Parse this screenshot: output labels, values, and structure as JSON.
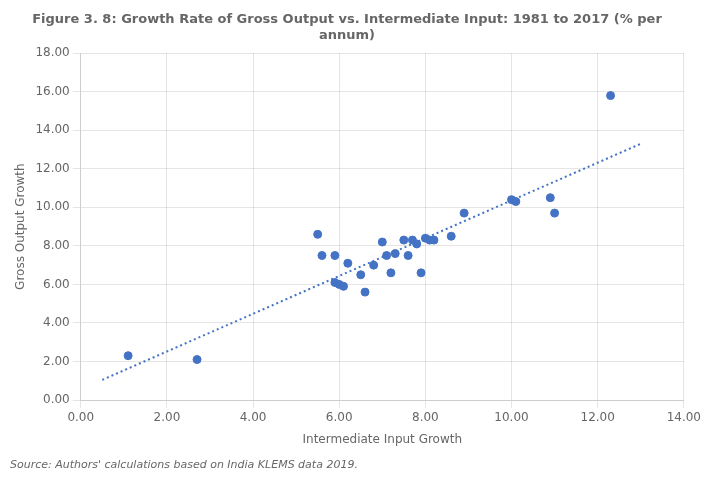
{
  "chart_data": {
    "type": "scatter",
    "title": [
      "Figure 3. 8: Growth Rate of Gross Output vs. Intermediate Input: 1981 to 2017 (% per",
      "annum)"
    ],
    "x_label": "Intermediate Input Growth",
    "y_label": "Gross Output Growth",
    "annotations": [
      "Source: Authors' calculations based on India KLEMS data 2019."
    ],
    "series": [
      {
        "type": "scatter",
        "color": "#4472C4",
        "marker": "circle",
        "x": [
          1.1,
          2.7,
          5.5,
          5.6,
          5.9,
          5.9,
          6.0,
          6.1,
          6.2,
          6.5,
          6.6,
          6.8,
          7.0,
          7.1,
          7.2,
          7.3,
          7.5,
          7.6,
          7.7,
          7.8,
          7.9,
          8.0,
          8.1,
          8.2,
          8.6,
          8.9,
          10.0,
          10.1,
          10.9,
          11.0,
          12.3
        ],
        "y": [
          2.3,
          2.1,
          8.6,
          7.5,
          7.5,
          6.1,
          6.0,
          5.9,
          7.1,
          6.5,
          5.6,
          7.0,
          8.2,
          7.5,
          6.6,
          7.6,
          8.3,
          7.5,
          8.3,
          8.1,
          6.6,
          8.4,
          8.3,
          8.3,
          8.5,
          9.7,
          10.4,
          10.3,
          10.5,
          9.7,
          15.8
        ]
      },
      {
        "type": "line",
        "color": "#4472C4",
        "line_style": "dotted",
        "x": [
          0.5,
          13.0
        ],
        "y": [
          1.046,
          13.298
        ]
      }
    ],
    "xlim": [
      0,
      14
    ],
    "ylim": [
      0,
      18
    ],
    "xticks": [
      {
        "value": 0,
        "label": "0.00"
      },
      {
        "value": 2,
        "label": "2.00"
      },
      {
        "value": 4,
        "label": "4.00"
      },
      {
        "value": 6,
        "label": "6.00"
      },
      {
        "value": 8,
        "label": "8.00"
      },
      {
        "value": 10,
        "label": "10.00"
      },
      {
        "value": 12,
        "label": "12.00"
      },
      {
        "value": 14,
        "label": "14.00"
      }
    ],
    "yticks": [
      {
        "value": 0,
        "label": "0.00"
      },
      {
        "value": 2,
        "label": "2.00"
      },
      {
        "value": 4,
        "label": "4.00"
      },
      {
        "value": 6,
        "label": "6.00"
      },
      {
        "value": 8,
        "label": "8.00"
      },
      {
        "value": 10,
        "label": "10.00"
      },
      {
        "value": 12,
        "label": "12.00"
      },
      {
        "value": 14,
        "label": "14.00"
      },
      {
        "value": 16,
        "label": "16.00"
      },
      {
        "value": 18,
        "label": "18.00"
      }
    ],
    "grid": true
  }
}
